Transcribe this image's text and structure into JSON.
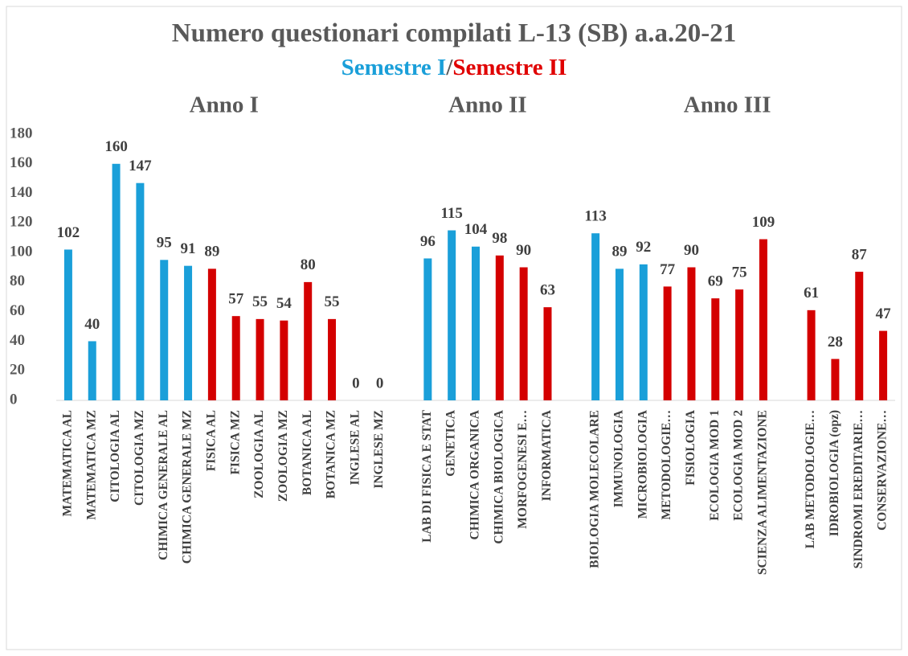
{
  "chart_data": {
    "type": "bar",
    "title": "Numero questionari compilati  L-13 (SB) a.a.20-21",
    "subtitle_parts": [
      {
        "text": "Semestre I",
        "color": "#1a9fd9"
      },
      {
        "text": "/",
        "color": "#595959"
      },
      {
        "text": "Semestre II",
        "color": "#e00000"
      }
    ],
    "annotations": [
      {
        "text": "Anno I",
        "category": 6.5
      },
      {
        "text": "Anno II",
        "category": 17.5
      },
      {
        "text": "Anno III",
        "category": 27.5
      }
    ],
    "categories": [
      "MATEMATICA AL",
      "MATEMATICA MZ",
      "CITOLOGIA AL",
      "CITOLOGIA MZ",
      "CHIMICA GENERALE AL",
      "CHIMICA GENERALE MZ",
      "FISICA AL",
      "FISICA MZ",
      "ZOOLOGIA AL",
      "ZOOLOGIA MZ",
      "BOTANICA AL",
      "BOTANICA MZ",
      "INGLESE AL",
      "INGLESE MZ",
      null,
      "LAB DI FISICA E STAT",
      "GENETICA",
      "CHIMICA ORGANICA",
      "CHIMICA BIOLOGICA",
      "MORFOGENESI E…",
      "INFORMATICA",
      null,
      "BIOLOGIA MOLECOLARE",
      "IMMUNOLOGIA",
      "MICROBIOLOGIA",
      "METODOLOGIE…",
      "FISIOLOGIA",
      "ECOLOGIA MOD 1",
      "ECOLOGIA MOD 2",
      "SCIENZA ALIMENTAZIONE",
      null,
      "LAB METODOLOGIE…",
      "IDROBIOLOGIA  (opz)",
      "SINDROMI EREDITARIE…",
      "CONSERVAZIONE…"
    ],
    "values": [
      102,
      40,
      160,
      147,
      95,
      91,
      89,
      57,
      55,
      54,
      80,
      55,
      0,
      0,
      null,
      96,
      115,
      104,
      98,
      90,
      63,
      null,
      113,
      89,
      92,
      77,
      90,
      69,
      75,
      109,
      null,
      61,
      28,
      87,
      47
    ],
    "colors": [
      "#1a9fd9",
      "#1a9fd9",
      "#1a9fd9",
      "#1a9fd9",
      "#1a9fd9",
      "#1a9fd9",
      "#d40000",
      "#d40000",
      "#d40000",
      "#d40000",
      "#d40000",
      "#d40000",
      "#d40000",
      "#d40000",
      null,
      "#1a9fd9",
      "#1a9fd9",
      "#1a9fd9",
      "#d40000",
      "#d40000",
      "#d40000",
      null,
      "#1a9fd9",
      "#1a9fd9",
      "#1a9fd9",
      "#d40000",
      "#d40000",
      "#d40000",
      "#d40000",
      "#d40000",
      null,
      "#d40000",
      "#d40000",
      "#d40000",
      "#d40000"
    ],
    "ylim": [
      0,
      180
    ],
    "yticks": [
      0,
      20,
      40,
      60,
      80,
      100,
      120,
      140,
      160,
      180
    ]
  }
}
